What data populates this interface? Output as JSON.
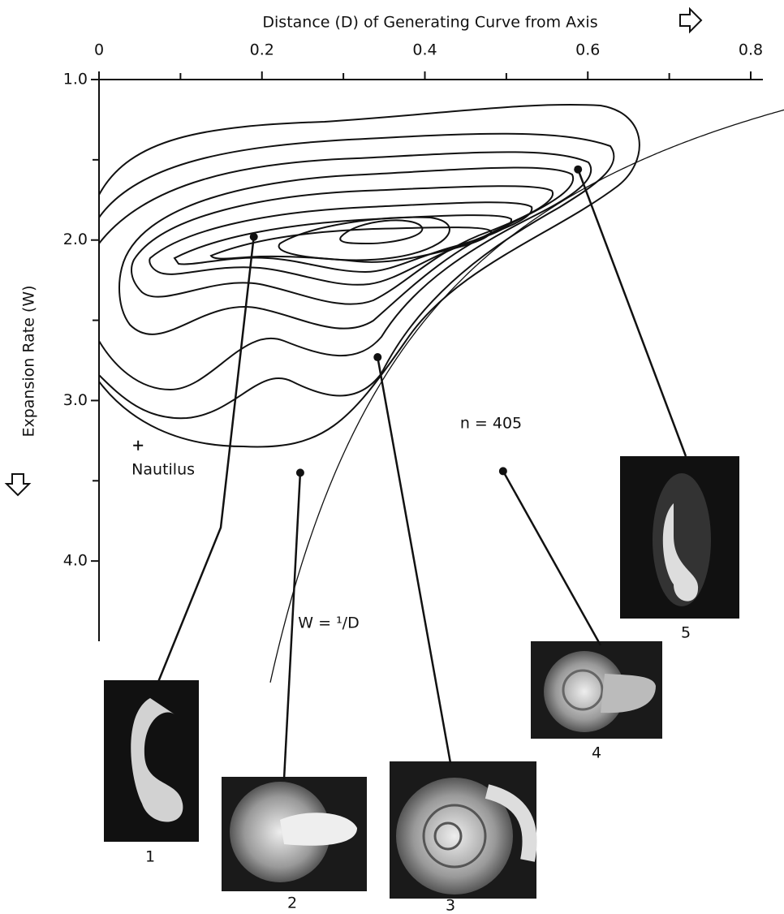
{
  "chart_data": {
    "type": "contour",
    "x_label": "Distance (D) of Generating Curve from Axis",
    "y_label": "Expansion Rate (W)",
    "xlim": [
      0,
      0.8
    ],
    "ylim": [
      1,
      4.5
    ],
    "y_inverted": true,
    "x_axis_position": "top",
    "xticks": [
      0,
      0.2,
      0.4,
      0.6,
      0.8
    ],
    "xticks_minor": [
      0.1,
      0.3,
      0.5,
      0.7
    ],
    "yticks": [
      {
        "value": 1,
        "label": "1.0"
      },
      {
        "value": 2,
        "label": "2.0"
      },
      {
        "value": 3,
        "label": "3.0"
      },
      {
        "value": 4,
        "label": "4.0"
      }
    ],
    "yticks_minor": [
      1.5,
      2.5,
      3.5
    ],
    "annotations": [
      "n = 405",
      "W = ¹/D"
    ],
    "reference": {
      "label": "Nautilus",
      "x": 0.048,
      "y": 3.28
    },
    "specimens": [
      {
        "label": "1",
        "x": 0.19,
        "y": 1.98
      },
      {
        "label": "2",
        "x": 0.247,
        "y": 3.45
      },
      {
        "label": "3",
        "x": 0.342,
        "y": 2.73
      },
      {
        "label": "4",
        "x": 0.496,
        "y": 3.44
      },
      {
        "label": "5",
        "x": 0.588,
        "y": 1.56
      }
    ]
  }
}
